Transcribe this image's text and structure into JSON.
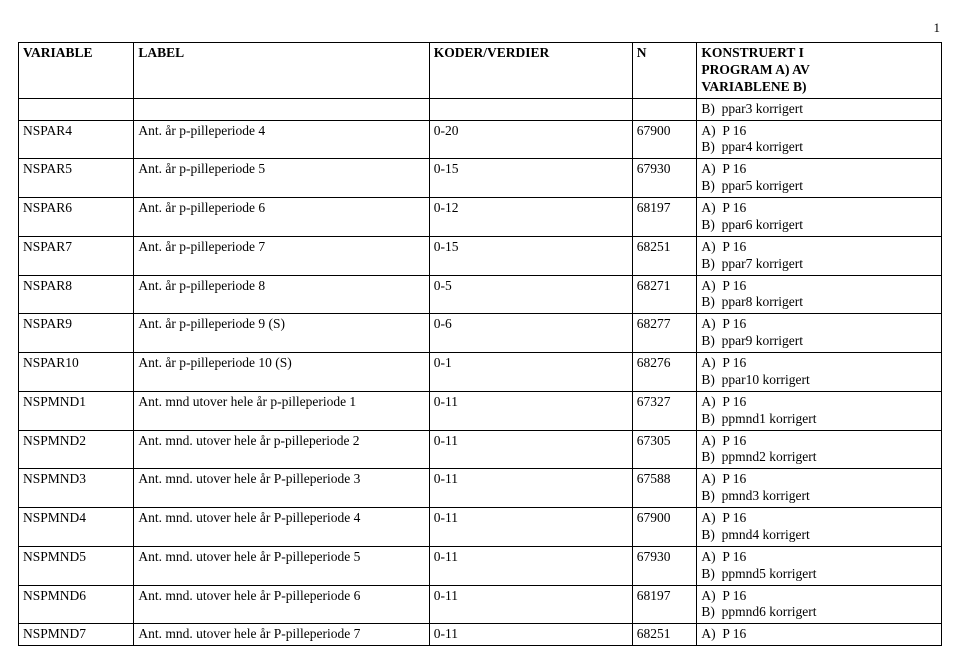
{
  "page_number": "1",
  "headers": {
    "variable": "VARIABLE",
    "label": "LABEL",
    "koder": "KODER/VERDIER",
    "n": "N",
    "konstruert_line1": "KONSTRUERT I",
    "konstruert_line2": "PROGRAM A) AV",
    "konstruert_line3": "VARIABLENE B)"
  },
  "rows": [
    {
      "variable": "",
      "label": "",
      "koder": "",
      "n": "",
      "a": "",
      "b": "B)  ppar3 korrigert"
    },
    {
      "variable": "NSPAR4",
      "label": "Ant. år p-pilleperiode 4",
      "koder": "0-20",
      "n": "67900",
      "a": "A)  P 16",
      "b": "B)  ppar4 korrigert"
    },
    {
      "variable": "NSPAR5",
      "label": "Ant. år p-pilleperiode 5",
      "koder": "0-15",
      "n": "67930",
      "a": "A)  P 16",
      "b": "B)  ppar5 korrigert"
    },
    {
      "variable": "NSPAR6",
      "label": "Ant. år p-pilleperiode 6",
      "koder": "0-12",
      "n": "68197",
      "a": "A)  P 16",
      "b": "B)  ppar6 korrigert"
    },
    {
      "variable": "NSPAR7",
      "label": "Ant. år p-pilleperiode 7",
      "koder": "0-15",
      "n": "68251",
      "a": "A)  P 16",
      "b": "B)  ppar7 korrigert"
    },
    {
      "variable": "NSPAR8",
      "label": "Ant. år p-pilleperiode 8",
      "koder": "0-5",
      "n": "68271",
      "a": "A)  P 16",
      "b": "B)  ppar8 korrigert"
    },
    {
      "variable": "NSPAR9",
      "label": "Ant. år p-pilleperiode 9 (S)",
      "koder": "0-6",
      "n": "68277",
      "a": "A)  P 16",
      "b": "B)  ppar9 korrigert"
    },
    {
      "variable": "NSPAR10",
      "label": "Ant. år p-pilleperiode 10 (S)",
      "koder": "0-1",
      "n": "68276",
      "a": "A)  P 16",
      "b": "B)  ppar10 korrigert"
    },
    {
      "variable": "NSPMND1",
      "label": "Ant. mnd utover hele år p-pilleperiode 1",
      "koder": "0-11",
      "n": "67327",
      "a": "A)  P 16",
      "b": "B)  ppmnd1 korrigert"
    },
    {
      "variable": "NSPMND2",
      "label": "Ant. mnd. utover hele år p-pilleperiode 2",
      "koder": "0-11",
      "n": "67305",
      "a": "A)  P 16",
      "b": "B)  ppmnd2 korrigert"
    },
    {
      "variable": "NSPMND3",
      "label": "Ant. mnd. utover hele år P-pilleperiode 3",
      "koder": "0-11",
      "n": "67588",
      "a": "A)  P 16",
      "b": "B)  pmnd3 korrigert"
    },
    {
      "variable": "NSPMND4",
      "label": "Ant. mnd. utover hele år P-pilleperiode 4",
      "koder": "0-11",
      "n": "67900",
      "a": "A)  P 16",
      "b": "B)  pmnd4 korrigert"
    },
    {
      "variable": "NSPMND5",
      "label": "Ant. mnd. utover hele år P-pilleperiode 5",
      "koder": "0-11",
      "n": "67930",
      "a": "A)  P 16",
      "b": "B)  ppmnd5 korrigert"
    },
    {
      "variable": "NSPMND6",
      "label": "Ant. mnd. utover hele år P-pilleperiode 6",
      "koder": "0-11",
      "n": "68197",
      "a": "A)  P 16",
      "b": "B)  ppmnd6 korrigert"
    },
    {
      "variable": "NSPMND7",
      "label": "Ant. mnd. utover hele år P-pilleperiode 7",
      "koder": "0-11",
      "n": "68251",
      "a": "A)  P 16",
      "b": ""
    }
  ]
}
